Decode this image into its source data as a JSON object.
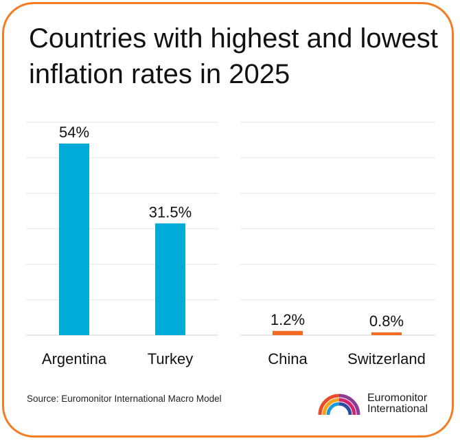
{
  "title": "Countries with highest and lowest inflation rates in 2025",
  "source": "Source: Euromonitor International Macro Model",
  "logo": {
    "line1": "Euromonitor",
    "line2": "International",
    "icon": "euromonitor-logo-icon"
  },
  "colors": {
    "high": "#00acd7",
    "low": "#f26b22",
    "border": "#f47b20"
  },
  "chart_data": {
    "type": "bar",
    "groups": [
      {
        "name": "",
        "categories": [
          "Argentina",
          "Turkey"
        ],
        "values": [
          54,
          31.5
        ],
        "labels": [
          "54%",
          "31.5%"
        ],
        "color": "#00acd7"
      },
      {
        "name": "",
        "categories": [
          "China",
          "Switzerland"
        ],
        "values": [
          1.2,
          0.8
        ],
        "labels": [
          "1.2%",
          "0.8%"
        ],
        "color": "#f26b22"
      }
    ],
    "ylim": [
      0,
      60
    ],
    "grid": true,
    "xlabel": "",
    "ylabel": ""
  }
}
